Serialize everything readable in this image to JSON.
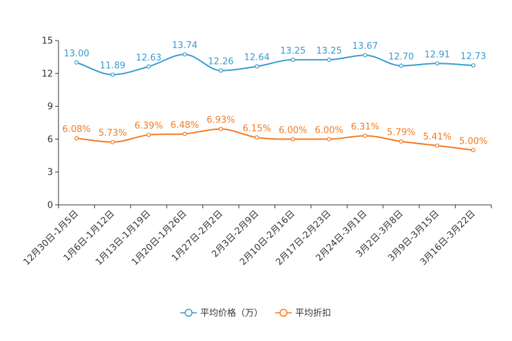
{
  "chart_data": {
    "type": "line",
    "title": "",
    "xlabel": "",
    "ylabel": "",
    "ylim": [
      0,
      15
    ],
    "yticks": [
      0,
      3,
      6,
      9,
      12,
      15
    ],
    "grid": false,
    "legend_position": "bottom-center",
    "categories": [
      "12月30日-1月5日",
      "1月6日-1月12日",
      "1月13日-1月19日",
      "1月20日-1月26日",
      "1月27日-2月2日",
      "2月3日-2月9日",
      "2月10日-2月16日",
      "2月17日-2月23日",
      "2月24日-3月1日",
      "3月2日-3月8日",
      "3月9日-3月15日",
      "3月16日-3月22日"
    ],
    "series": [
      {
        "name": "平均价格（万）",
        "color": "#3a9bd0",
        "values": [
          13.0,
          11.89,
          12.63,
          13.74,
          12.26,
          12.64,
          13.25,
          13.25,
          13.67,
          12.7,
          12.91,
          12.73
        ],
        "labels": [
          "13.00",
          "11.89",
          "12.63",
          "13.74",
          "12.26",
          "12.64",
          "13.25",
          "13.25",
          "13.67",
          "12.70",
          "12.91",
          "12.73"
        ]
      },
      {
        "name": "平均折扣",
        "color": "#f47a20",
        "values": [
          6.08,
          5.73,
          6.39,
          6.48,
          6.93,
          6.15,
          6.0,
          6.0,
          6.31,
          5.79,
          5.41,
          5.0
        ],
        "labels": [
          "6.08%",
          "5.73%",
          "6.39%",
          "6.48%",
          "6.93%",
          "6.15%",
          "6.00%",
          "6.00%",
          "6.31%",
          "5.79%",
          "5.41%",
          "5.00%"
        ]
      }
    ]
  }
}
